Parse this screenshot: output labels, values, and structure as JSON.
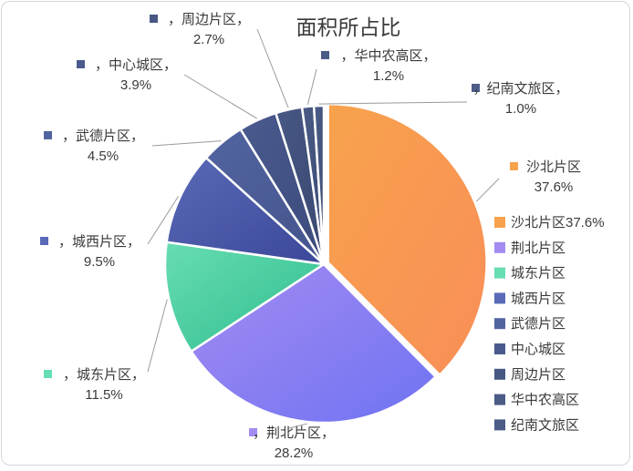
{
  "chart_data": {
    "type": "pie",
    "title": "面积所占比",
    "slices": [
      {
        "name": "沙北片区",
        "value": 37.6,
        "label_name": "沙北片区",
        "label_value": "37.6%",
        "legend": "沙北片区37.6%",
        "color_start": "#f7a24c",
        "color_end": "#f98e58"
      },
      {
        "name": "荆北片区",
        "value": 28.2,
        "label_name": "，荆北片区，",
        "label_value": "28.2%",
        "legend": "荆北片区",
        "color_start": "#a48bf2",
        "color_end": "#6f73f2"
      },
      {
        "name": "城东片区",
        "value": 11.5,
        "label_name": "，城东片区，",
        "label_value": "11.5%",
        "legend": "城东片区",
        "color_start": "#67ddb2",
        "color_end": "#2fbd8e"
      },
      {
        "name": "城西片区",
        "value": 9.5,
        "label_name": "，城西片区，",
        "label_value": "9.5%",
        "legend": "城西片区",
        "color_start": "#5a6ab6",
        "color_end": "#3b4799"
      },
      {
        "name": "武德片区",
        "value": 4.5,
        "label_name": "，武德片区，",
        "label_value": "4.5%",
        "legend": "武德片区",
        "color_start": "#5264a0",
        "color_end": "#44548c"
      },
      {
        "name": "中心城区",
        "value": 3.9,
        "label_name": "，中心城区，",
        "label_value": "3.9%",
        "legend": "中心城区",
        "color_start": "#4a5a8e",
        "color_end": "#3c4b7b"
      },
      {
        "name": "周边片区",
        "value": 2.7,
        "label_name": "，周边片区，",
        "label_value": "2.7%",
        "legend": "周边片区",
        "color_start": "#475884",
        "color_end": "#3a4872"
      },
      {
        "name": "华中农高区",
        "value": 1.2,
        "label_name": "，华中农高区，",
        "label_value": "1.2%",
        "legend": "华中农高区",
        "color_start": "#4a5b86",
        "color_end": "#3b4a72"
      },
      {
        "name": "纪南文旅区",
        "value": 1.0,
        "label_name": "，纪南文旅区，",
        "label_value": "1.0%",
        "legend": "纪南文旅区",
        "color_start": "#4c5c88",
        "color_end": "#3d4c74"
      }
    ],
    "legend_position": "right"
  }
}
